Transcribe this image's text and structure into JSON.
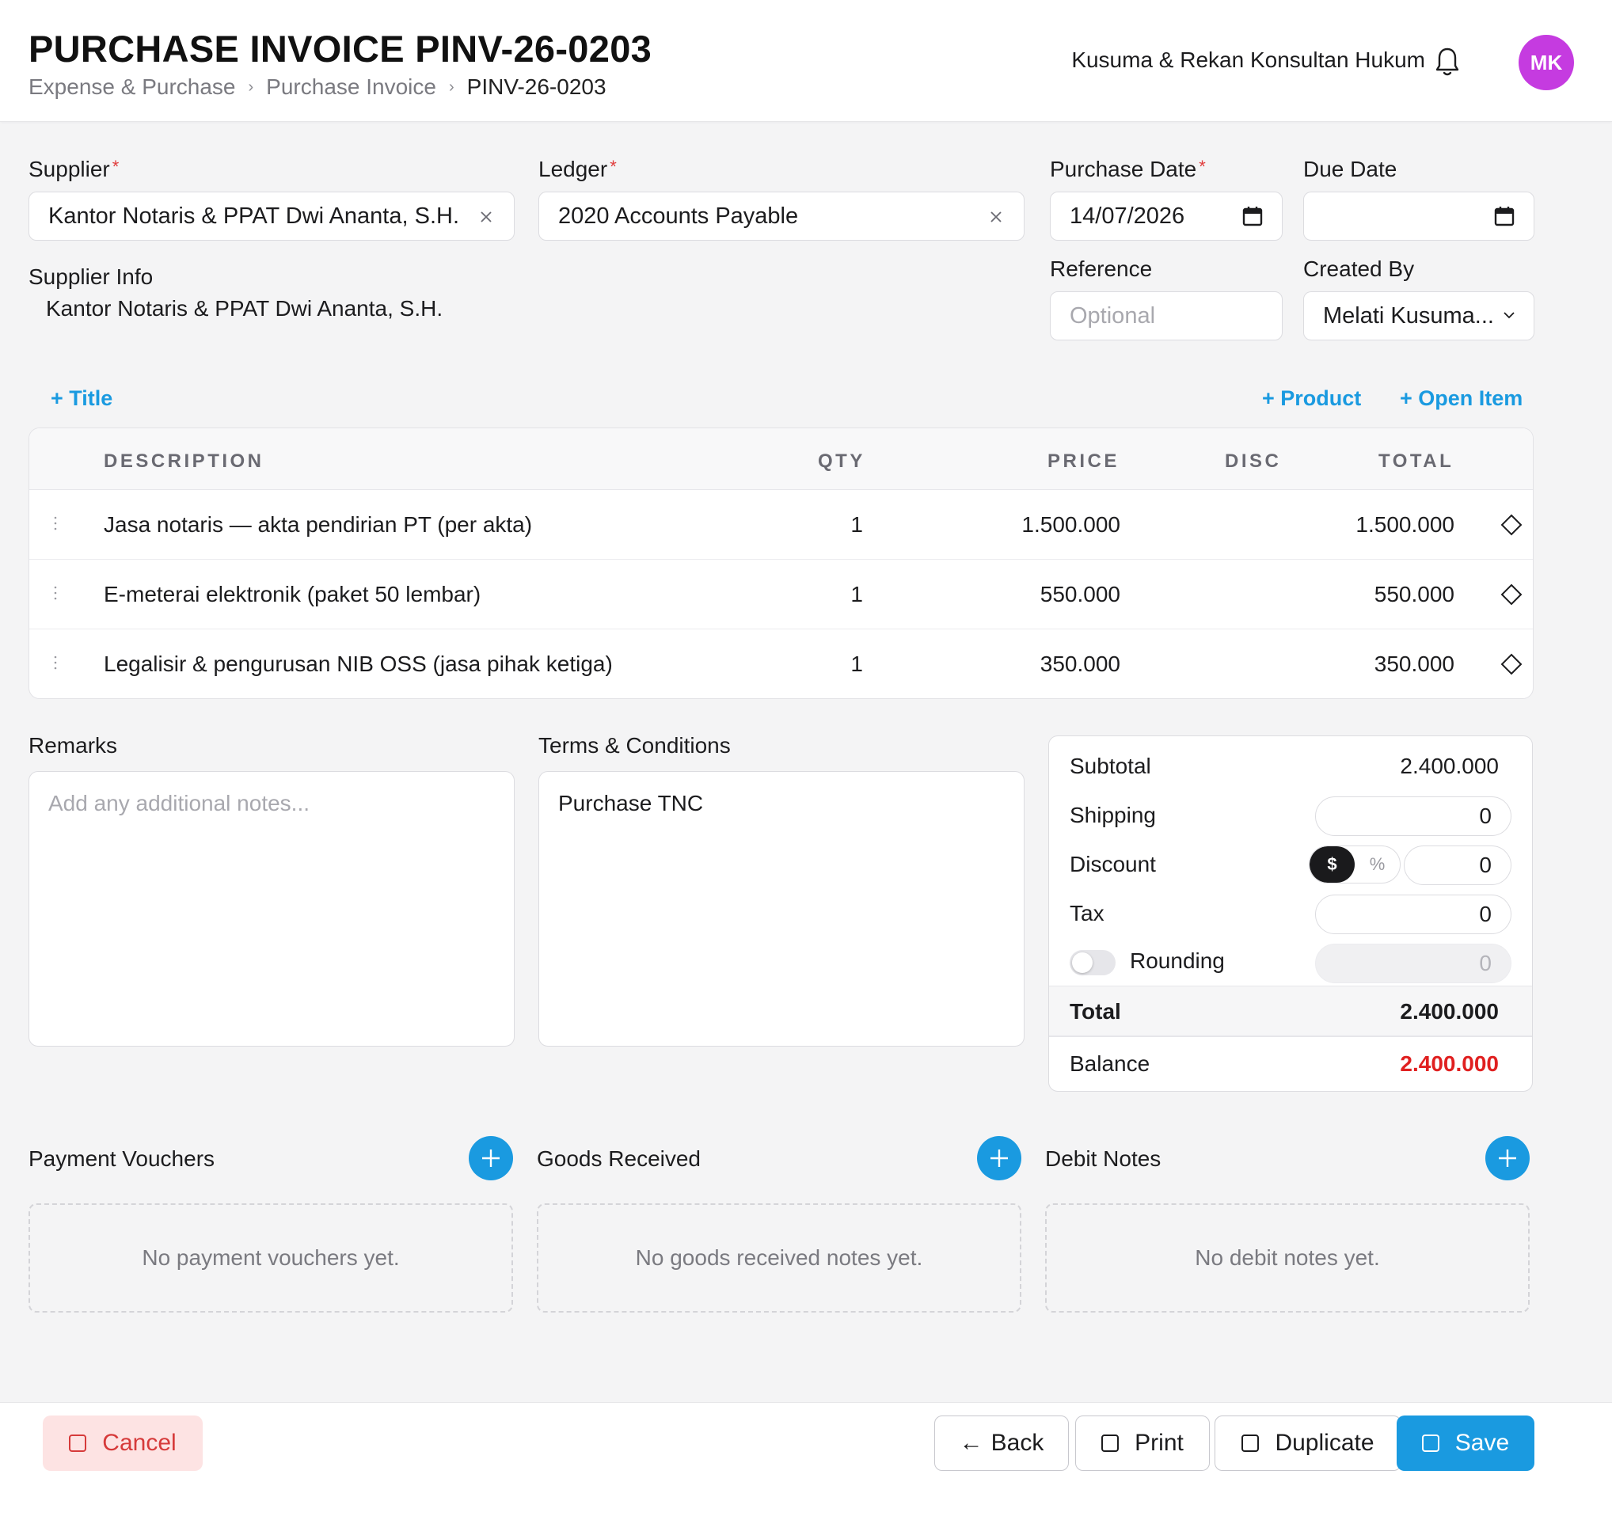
{
  "header": {
    "title": "PURCHASE INVOICE PINV-26-0203",
    "breadcrumb": [
      "Expense & Purchase",
      "Purchase Invoice",
      "PINV-26-0203"
    ],
    "company": "Kusuma & Rekan Konsultan Hukum",
    "avatar_initials": "MK",
    "avatar_color": "#c53be0"
  },
  "form": {
    "supplier_label": "Supplier",
    "supplier_value": "Kantor Notaris & PPAT Dwi Ananta, S.H.",
    "ledger_label": "Ledger",
    "ledger_value": "2020 Accounts Payable",
    "purchase_date_label": "Purchase Date",
    "purchase_date_value": "14/07/2026",
    "due_date_label": "Due Date",
    "due_date_value": "",
    "reference_label": "Reference",
    "reference_placeholder": "Optional",
    "created_by_label": "Created By",
    "created_by_value": "Melati Kusuma...",
    "supplier_info_label": "Supplier Info",
    "supplier_info_value": "Kantor Notaris & PPAT Dwi Ananta, S.H.",
    "required_mark": "*"
  },
  "actions": {
    "add_title": "+ Title",
    "add_product": "+ Product",
    "add_open_item": "+ Open Item"
  },
  "items": {
    "columns": [
      "DESCRIPTION",
      "QTY",
      "PRICE",
      "DISC",
      "TOTAL"
    ],
    "rows": [
      {
        "description": "Jasa notaris — akta pendirian PT (per akta)",
        "qty": "1",
        "price": "1.500.000",
        "disc": "",
        "total": "1.500.000"
      },
      {
        "description": "E-meterai elektronik (paket 50 lembar)",
        "qty": "1",
        "price": "550.000",
        "disc": "",
        "total": "550.000"
      },
      {
        "description": "Legalisir & pengurusan NIB OSS (jasa pihak ketiga)",
        "qty": "1",
        "price": "350.000",
        "disc": "",
        "total": "350.000"
      }
    ]
  },
  "remarks": {
    "label": "Remarks",
    "placeholder": "Add any additional notes..."
  },
  "terms": {
    "label": "Terms & Conditions",
    "value": "Purchase TNC"
  },
  "summary": {
    "subtotal_label": "Subtotal",
    "subtotal_value": "2.400.000",
    "shipping_label": "Shipping",
    "shipping_value": "0",
    "discount_label": "Discount",
    "discount_mode_amount": "$",
    "discount_mode_percent": "%",
    "discount_value": "0",
    "tax_label": "Tax",
    "tax_value": "0",
    "rounding_label": "Rounding",
    "rounding_value": "0",
    "total_label": "Total",
    "total_value": "2.400.000",
    "balance_label": "Balance",
    "balance_value": "2.400.000",
    "balance_color": "#e02020"
  },
  "sections": {
    "payment_vouchers": {
      "title": "Payment Vouchers",
      "empty": "No payment vouchers yet."
    },
    "goods_received": {
      "title": "Goods Received",
      "empty": "No goods received notes yet."
    },
    "debit_notes": {
      "title": "Debit Notes",
      "empty": "No debit notes yet."
    }
  },
  "footer": {
    "cancel_label": "Cancel",
    "back_label": "Back",
    "print_label": "Print",
    "duplicate_label": "Duplicate",
    "save_label": "Save"
  },
  "colors": {
    "accent": "#1a9ae0",
    "cancel_bg": "#fde3e3",
    "cancel_text": "#d63a3a"
  }
}
